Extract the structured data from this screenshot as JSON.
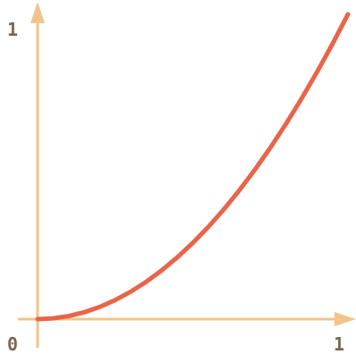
{
  "chart_data": {
    "type": "line",
    "title": "",
    "xlabel": "",
    "ylabel": "",
    "xlim": [
      0,
      1
    ],
    "ylim": [
      0,
      1
    ],
    "grid": false,
    "legend": "none",
    "tick_labels": {
      "origin": "0",
      "x_max": "1",
      "y_max": "1"
    },
    "series": [
      {
        "x": [
          0.0,
          0.05,
          0.1,
          0.15,
          0.2,
          0.25,
          0.3,
          0.35,
          0.4,
          0.45,
          0.5,
          0.55,
          0.6,
          0.65,
          0.7,
          0.75,
          0.8,
          0.85,
          0.9,
          0.95,
          1.0
        ],
        "y": [
          0.0,
          0.0025,
          0.01,
          0.0225,
          0.04,
          0.0625,
          0.09,
          0.1225,
          0.16,
          0.2025,
          0.25,
          0.3025,
          0.36,
          0.4225,
          0.49,
          0.5625,
          0.64,
          0.7225,
          0.81,
          0.9025,
          1.0
        ]
      }
    ]
  },
  "colors": {
    "axis": "#f0c48a",
    "curve": "#e8654a",
    "tick_text": "#7a6652"
  }
}
